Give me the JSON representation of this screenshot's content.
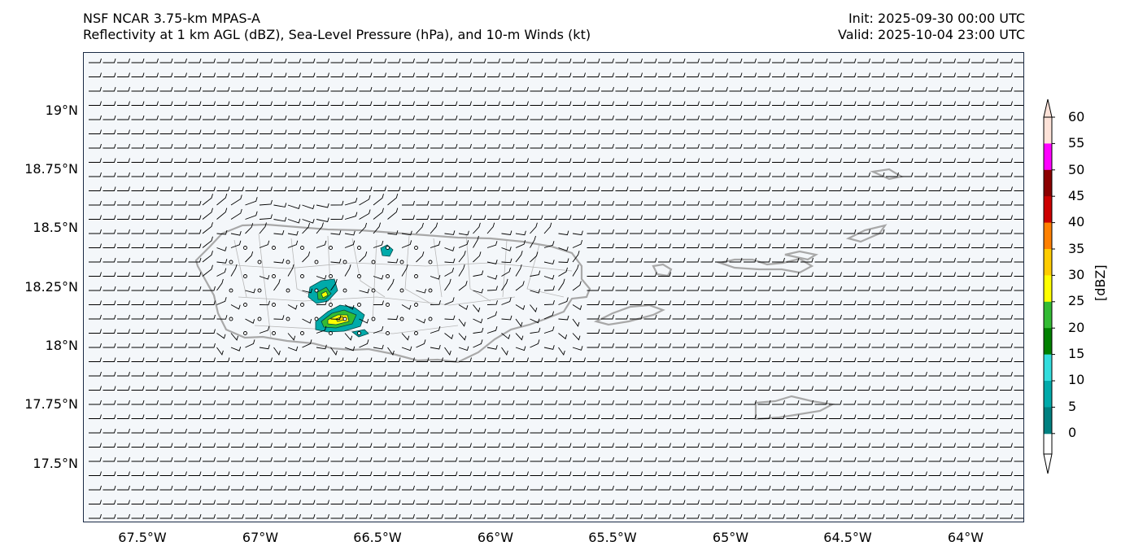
{
  "header": {
    "title_line1": "NSF NCAR 3.75-km MPAS-A",
    "title_line2": "Reflectivity at 1 km AGL (dBZ), Sea-Level Pressure (hPa), and 10-m Winds (kt)",
    "init": "Init: 2025-09-30 00:00 UTC",
    "valid": "Valid: 2025-10-04 23:00 UTC"
  },
  "axes": {
    "y_ticks": [
      "19°N",
      "18.75°N",
      "18.5°N",
      "18.25°N",
      "18°N",
      "17.75°N",
      "17.5°N"
    ],
    "x_ticks": [
      "67.5°W",
      "67°W",
      "66.5°W",
      "66°W",
      "65.5°W",
      "65°W",
      "64.5°W",
      "64°W"
    ]
  },
  "colorbar": {
    "title": "[dBZ]",
    "labels": [
      "60",
      "55",
      "50",
      "45",
      "40",
      "35",
      "30",
      "25",
      "20",
      "15",
      "10",
      "5",
      "0"
    ],
    "colors": [
      "#fde2d8",
      "#ff00ff",
      "#8b0000",
      "#cc0000",
      "#ff8000",
      "#ffcc00",
      "#ffff00",
      "#33bb33",
      "#008000",
      "#33dddd",
      "#00aaaa",
      "#008080",
      "#ffffff"
    ]
  },
  "map": {
    "background": "#f4f7fa",
    "coast_color": "#a8a8a8",
    "muni_color": "#b8b8b8",
    "barb_color": "#000000"
  }
}
